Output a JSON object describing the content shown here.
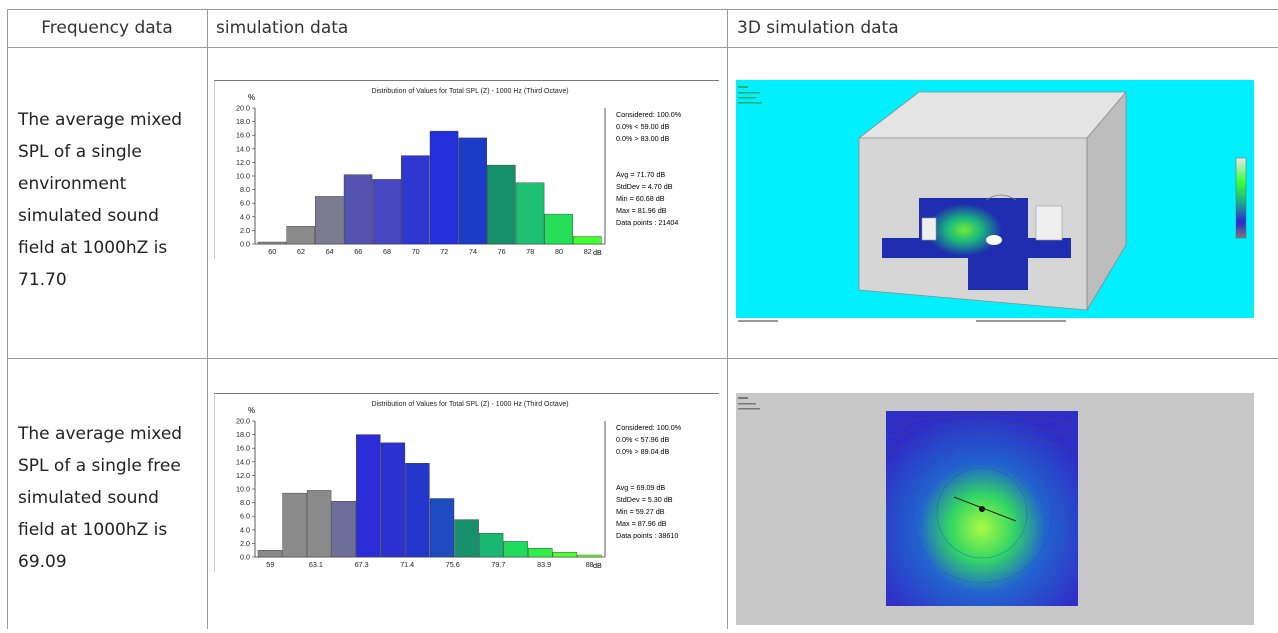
{
  "headers": [
    "Frequency data",
    "simulation data",
    "3D simulation data"
  ],
  "rows": [
    {
      "description_lines": [
        "The average mixed",
        "SPL of a single",
        "environment",
        "simulated sound",
        "field at 1000hZ is",
        "71.70"
      ],
      "histogram": {
        "y_symbol": "%",
        "stats": [
          "Considered: 100.0%",
          "0.0% < 59.00 dB",
          "0.0% > 83.00 dB",
          "Avg = 71.70 dB",
          "StdDev = 4.70 dB",
          "Min = 60.68 dB",
          "Max = 81.96 dB",
          "Data points : 21404"
        ],
        "unit": "dB"
      }
    },
    {
      "description_lines": [
        "The average mixed",
        "SPL of a single free",
        "simulated sound",
        "field at 1000hZ is",
        "69.09"
      ],
      "histogram": {
        "y_symbol": "%",
        "stats": [
          "Considered: 100.0%",
          "0.0% < 57.96 dB",
          "0.0% > 89.04 dB",
          "Avg = 69.09 dB",
          "StdDev = 5.30 dB",
          "Min = 59.27 dB",
          "Max = 87.96 dB",
          "Data points : 38610"
        ],
        "unit": "dB"
      }
    }
  ],
  "chart_data": [
    {
      "type": "bar",
      "title": "Distribution of Values for Total SPL (Z) - 1000 Hz (Third Octave)",
      "xlabel": "dB",
      "ylabel": "%",
      "ylim": [
        0,
        20
      ],
      "yticks": [
        "0.0",
        "2.0",
        "4.0",
        "6.0",
        "8.0",
        "10.0",
        "12.0",
        "14.0",
        "16.0",
        "18.0",
        "20.0"
      ],
      "xticks": [
        "60",
        "62",
        "64",
        "66",
        "68",
        "70",
        "72",
        "74",
        "76",
        "78",
        "80",
        "82"
      ],
      "values": [
        0.3,
        2.6,
        7.0,
        10.2,
        9.5,
        13.0,
        16.6,
        15.6,
        11.6,
        9.0,
        4.4,
        1.1
      ],
      "colors": [
        "#8a8a8a",
        "#8a8a8a",
        "#7c7c90",
        "#5454b0",
        "#4646c0",
        "#2e38d0",
        "#2430dc",
        "#1c3cc8",
        "#16906a",
        "#1cc070",
        "#24e058",
        "#44ff30"
      ],
      "grid": false
    },
    {
      "type": "bar",
      "title": "Distribution of Values for Total SPL (Z) - 1000 Hz (Third Octave)",
      "xlabel": "dB",
      "ylabel": "%",
      "ylim": [
        0,
        20
      ],
      "yticks": [
        "0.0",
        "2.0",
        "4.0",
        "6.0",
        "8.0",
        "10.0",
        "12.0",
        "14.0",
        "16.0",
        "18.0",
        "20.0"
      ],
      "xticks": [
        "59",
        "63.1",
        "67.3",
        "71.4",
        "75.6",
        "79.7",
        "83.9",
        "88"
      ],
      "values": [
        1.0,
        9.4,
        9.8,
        8.2,
        18.0,
        16.8,
        13.8,
        8.6,
        5.5,
        3.5,
        2.3,
        1.3,
        0.7,
        0.3
      ],
      "colors": [
        "#8a8a8a",
        "#8a8a8a",
        "#8a8a8a",
        "#6e6e9a",
        "#2c2cd8",
        "#2c30d0",
        "#2436cc",
        "#1c4cc0",
        "#18906c",
        "#18b870",
        "#20dc5c",
        "#30f048",
        "#50ff30",
        "#70ff20"
      ],
      "grid": false
    }
  ]
}
